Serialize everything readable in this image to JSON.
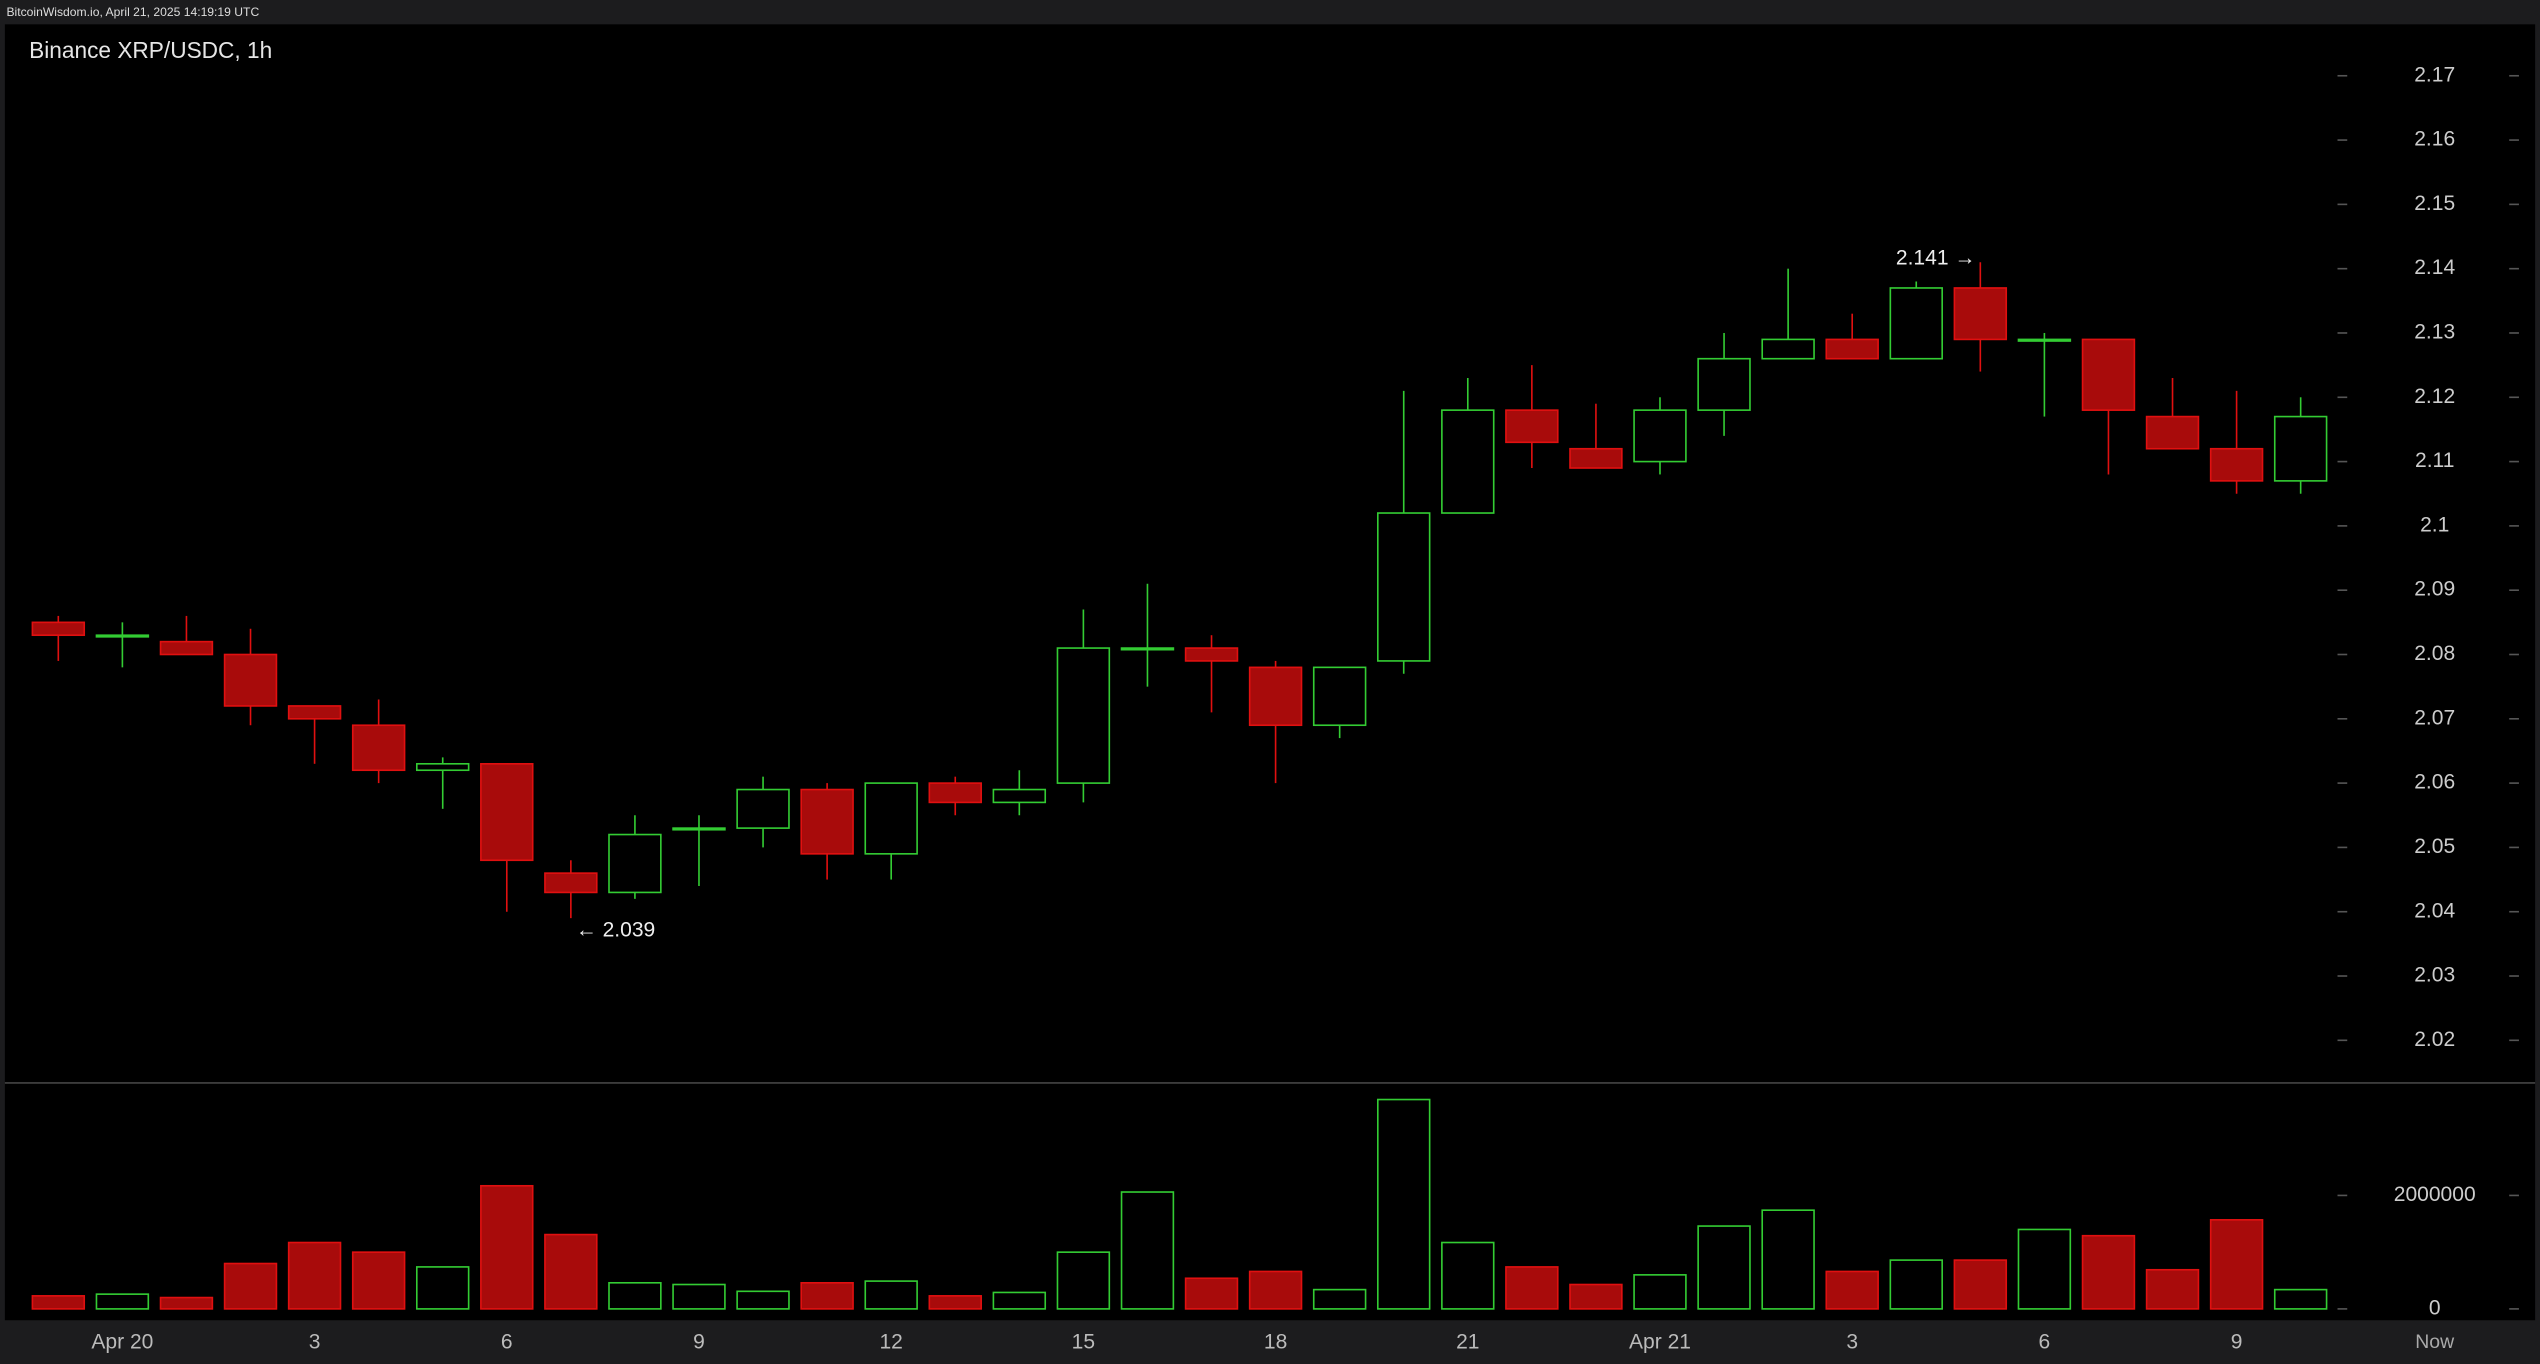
{
  "chart_data": {
    "type": "candlestick",
    "header": "BitcoinWisdom.io, April 21, 2025 14:19:19 UTC",
    "title": "Binance XRP/USDC, 1h",
    "categories": [
      null,
      "Apr 20",
      null,
      null,
      "3",
      null,
      null,
      "6",
      null,
      null,
      "9",
      null,
      null,
      "12",
      null,
      null,
      "15",
      null,
      null,
      "18",
      null,
      null,
      "21",
      null,
      null,
      "Apr 21",
      null,
      null,
      "3",
      null,
      null,
      "6",
      null,
      null,
      "9",
      null
    ],
    "open": [
      2.085,
      2.083,
      2.082,
      2.08,
      2.072,
      2.069,
      2.062,
      2.063,
      2.046,
      2.043,
      2.053,
      2.053,
      2.059,
      2.049,
      2.06,
      2.057,
      2.06,
      2.081,
      2.081,
      2.078,
      2.069,
      2.079,
      2.102,
      2.118,
      2.112,
      2.11,
      2.118,
      2.126,
      2.129,
      2.126,
      2.137,
      2.129,
      2.129,
      2.117,
      2.112,
      2.107
    ],
    "high": [
      2.086,
      2.085,
      2.086,
      2.084,
      2.072,
      2.073,
      2.064,
      2.063,
      2.048,
      2.055,
      2.055,
      2.061,
      2.06,
      2.06,
      2.061,
      2.062,
      2.087,
      2.091,
      2.083,
      2.079,
      2.078,
      2.121,
      2.123,
      2.125,
      2.119,
      2.12,
      2.13,
      2.14,
      2.133,
      2.138,
      2.141,
      2.13,
      2.129,
      2.123,
      2.121,
      2.12
    ],
    "low": [
      2.079,
      2.078,
      2.08,
      2.069,
      2.063,
      2.06,
      2.056,
      2.04,
      2.039,
      2.042,
      2.044,
      2.05,
      2.045,
      2.045,
      2.055,
      2.055,
      2.057,
      2.075,
      2.071,
      2.06,
      2.067,
      2.077,
      2.102,
      2.109,
      2.109,
      2.108,
      2.114,
      2.126,
      2.126,
      2.126,
      2.124,
      2.117,
      2.108,
      2.112,
      2.105,
      2.105
    ],
    "close": [
      2.083,
      2.083,
      2.08,
      2.072,
      2.07,
      2.062,
      2.063,
      2.048,
      2.043,
      2.052,
      2.053,
      2.059,
      2.049,
      2.06,
      2.057,
      2.059,
      2.081,
      2.081,
      2.079,
      2.069,
      2.078,
      2.102,
      2.118,
      2.113,
      2.109,
      2.118,
      2.126,
      2.129,
      2.126,
      2.137,
      2.129,
      2.129,
      2.118,
      2.112,
      2.107,
      2.117
    ],
    "ylim": [
      2.0135,
      2.178
    ],
    "yticks": [
      2.02,
      2.03,
      2.04,
      2.05,
      2.06,
      2.07,
      2.08,
      2.09,
      2.1,
      2.11,
      2.12,
      2.13,
      2.14,
      2.15,
      2.16,
      2.17
    ],
    "up_color": "#33cc33",
    "down_color": "#e01010",
    "down_fill": "#a80b0b",
    "annotations": [
      {
        "label": "← 2.039",
        "value": 2.039
      },
      {
        "label": "2.141 →",
        "value": 2.141
      }
    ],
    "volume": {
      "values": [
        230000,
        260000,
        200000,
        800000,
        1170000,
        1000000,
        740000,
        2170000,
        1310000,
        460000,
        430000,
        310000,
        460000,
        490000,
        230000,
        290000,
        1000000,
        2060000,
        540000,
        660000,
        340000,
        3690000,
        1170000,
        740000,
        430000,
        600000,
        1460000,
        1740000,
        660000,
        860000,
        860000,
        1400000,
        1290000,
        690000,
        1570000,
        340000
      ],
      "ylim": [
        0,
        3940000
      ],
      "yticks": [
        0,
        2000000
      ]
    },
    "now_label": "Now"
  }
}
